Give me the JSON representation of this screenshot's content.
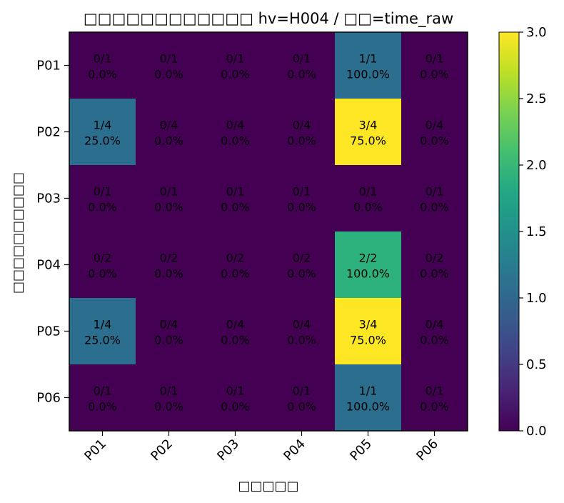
{
  "chart_data": {
    "type": "heatmap",
    "title": "□□□□□□□□□□□□ hv=H004 / □□=time_raw",
    "xlabel": "□□□□□",
    "ylabel": "□□□□□□□□□□",
    "x_categories": [
      "P01",
      "P02",
      "P03",
      "P04",
      "P05",
      "P06"
    ],
    "y_categories": [
      "P01",
      "P02",
      "P03",
      "P04",
      "P05",
      "P06"
    ],
    "values": [
      [
        0,
        0,
        0,
        0,
        1,
        0
      ],
      [
        1,
        0,
        0,
        0,
        3,
        0
      ],
      [
        0,
        0,
        0,
        0,
        0,
        0
      ],
      [
        0,
        0,
        0,
        0,
        2,
        0
      ],
      [
        1,
        0,
        0,
        0,
        3,
        0
      ],
      [
        0,
        0,
        0,
        0,
        1,
        0
      ]
    ],
    "cell_labels": [
      [
        [
          "0/1",
          "0.0%"
        ],
        [
          "0/1",
          "0.0%"
        ],
        [
          "0/1",
          "0.0%"
        ],
        [
          "0/1",
          "0.0%"
        ],
        [
          "1/1",
          "100.0%"
        ],
        [
          "0/1",
          "0.0%"
        ]
      ],
      [
        [
          "1/4",
          "25.0%"
        ],
        [
          "0/4",
          "0.0%"
        ],
        [
          "0/4",
          "0.0%"
        ],
        [
          "0/4",
          "0.0%"
        ],
        [
          "3/4",
          "75.0%"
        ],
        [
          "0/4",
          "0.0%"
        ]
      ],
      [
        [
          "0/1",
          "0.0%"
        ],
        [
          "0/1",
          "0.0%"
        ],
        [
          "0/1",
          "0.0%"
        ],
        [
          "0/1",
          "0.0%"
        ],
        [
          "0/1",
          "0.0%"
        ],
        [
          "0/1",
          "0.0%"
        ]
      ],
      [
        [
          "0/2",
          "0.0%"
        ],
        [
          "0/2",
          "0.0%"
        ],
        [
          "0/2",
          "0.0%"
        ],
        [
          "0/2",
          "0.0%"
        ],
        [
          "2/2",
          "100.0%"
        ],
        [
          "0/2",
          "0.0%"
        ]
      ],
      [
        [
          "1/4",
          "25.0%"
        ],
        [
          "0/4",
          "0.0%"
        ],
        [
          "0/4",
          "0.0%"
        ],
        [
          "0/4",
          "0.0%"
        ],
        [
          "3/4",
          "75.0%"
        ],
        [
          "0/4",
          "0.0%"
        ]
      ],
      [
        [
          "0/1",
          "0.0%"
        ],
        [
          "0/1",
          "0.0%"
        ],
        [
          "0/1",
          "0.0%"
        ],
        [
          "0/1",
          "0.0%"
        ],
        [
          "1/1",
          "100.0%"
        ],
        [
          "0/1",
          "0.0%"
        ]
      ]
    ],
    "vmin": 0,
    "vmax": 3,
    "colormap": "viridis",
    "colorbar_ticks": [
      "0.0",
      "0.5",
      "1.0",
      "1.5",
      "2.0",
      "2.5",
      "3.0"
    ],
    "colorbar_tick_values": [
      0,
      0.5,
      1,
      1.5,
      2,
      2.5,
      3
    ],
    "colors": {
      "v0": "#440154",
      "v1": "#2c6e8e",
      "v2": "#2db27d",
      "v3": "#fde725"
    }
  }
}
